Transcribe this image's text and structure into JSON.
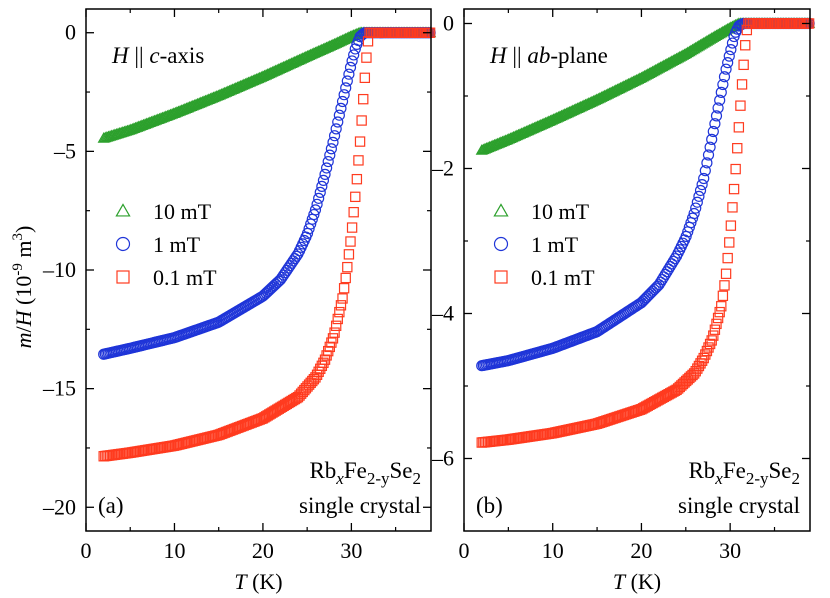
{
  "colors": {
    "green": "#2ca02c",
    "blue": "#1f35d8",
    "red": "#ff3b1f",
    "axis": "#000000",
    "background": "#ffffff"
  },
  "chart_data": [
    {
      "panel": "(a)",
      "type": "scatter",
      "annotation": "H || c-axis",
      "sample": [
        "Rb",
        "x",
        "Fe",
        "2-y",
        "Se",
        "2"
      ],
      "sample_line2": "single crystal",
      "xlabel": "T (K)",
      "ylabel": "m/H (10^-9 m^3)",
      "xlim": [
        0,
        39
      ],
      "ylim": [
        -21,
        1
      ],
      "xticks": [
        0,
        10,
        20,
        30
      ],
      "yticks": [
        0,
        -5,
        -10,
        -15,
        -20
      ],
      "ytick_labels": [
        "0",
        "–5",
        "–10",
        "–15",
        "–20"
      ],
      "legend_position": "center-left",
      "series": [
        {
          "name": "10 mT",
          "marker": "triangle",
          "color": "#2ca02c",
          "x": [
            2,
            5,
            10,
            15,
            20,
            25,
            28,
            30,
            31,
            32,
            34,
            36,
            39
          ],
          "y": [
            -4.45,
            -4.1,
            -3.4,
            -2.65,
            -1.85,
            -1.0,
            -0.5,
            -0.15,
            0.0,
            0.0,
            0.0,
            0.0,
            0.0
          ]
        },
        {
          "name": "1 mT",
          "marker": "circle",
          "color": "#1f35d8",
          "x": [
            2,
            5,
            10,
            15,
            20,
            22,
            24,
            25,
            26,
            27,
            28,
            28.5,
            29,
            29.5,
            30,
            30.5,
            31,
            31.5,
            32,
            34,
            36,
            39
          ],
          "y": [
            -13.55,
            -13.3,
            -12.85,
            -12.2,
            -11.1,
            -10.4,
            -9.3,
            -8.5,
            -7.4,
            -6.0,
            -4.5,
            -3.7,
            -2.9,
            -2.1,
            -1.3,
            -0.6,
            -0.15,
            0.0,
            0.0,
            0.0,
            0.0,
            0.0
          ]
        },
        {
          "name": "0.1 mT",
          "marker": "square",
          "color": "#ff3b1f",
          "x": [
            2,
            5,
            10,
            15,
            20,
            24,
            26,
            27,
            28,
            29,
            29.5,
            30,
            30.5,
            31,
            31.3,
            31.6,
            31.8,
            32,
            34,
            36,
            39
          ],
          "y": [
            -17.85,
            -17.7,
            -17.4,
            -16.95,
            -16.25,
            -15.35,
            -14.5,
            -13.8,
            -12.8,
            -11.2,
            -10.0,
            -8.5,
            -6.7,
            -4.5,
            -3.0,
            -1.5,
            -0.6,
            0.0,
            0.0,
            0.0,
            0.0
          ]
        }
      ]
    },
    {
      "panel": "(b)",
      "type": "scatter",
      "annotation": "H || ab-plane",
      "sample": [
        "Rb",
        "x",
        "Fe",
        "2-y",
        "Se",
        "2"
      ],
      "sample_line2": "single crystal",
      "xlabel": "T (K)",
      "ylabel": "",
      "xlim": [
        0,
        39
      ],
      "ylim": [
        -7,
        0.2
      ],
      "xticks": [
        0,
        10,
        20,
        30
      ],
      "yticks": [
        0,
        -2,
        -4,
        -6
      ],
      "ytick_labels": [
        "0",
        "–2",
        "–4",
        "–6"
      ],
      "legend_position": "center-left",
      "series": [
        {
          "name": "10 mT",
          "marker": "triangle",
          "color": "#2ca02c",
          "x": [
            2,
            5,
            10,
            15,
            20,
            25,
            28,
            30,
            31,
            32,
            34,
            36,
            39
          ],
          "y": [
            -1.75,
            -1.6,
            -1.33,
            -1.05,
            -0.75,
            -0.42,
            -0.2,
            -0.06,
            0.0,
            0.0,
            0.0,
            0.0,
            0.0
          ]
        },
        {
          "name": "1 mT",
          "marker": "circle",
          "color": "#1f35d8",
          "x": [
            2,
            5,
            10,
            15,
            20,
            22,
            24,
            25,
            26,
            27,
            28,
            28.5,
            29,
            29.5,
            30,
            30.5,
            31,
            31.5,
            32,
            34,
            36,
            39
          ],
          "y": [
            -4.72,
            -4.65,
            -4.48,
            -4.25,
            -3.85,
            -3.6,
            -3.2,
            -2.95,
            -2.6,
            -2.15,
            -1.55,
            -1.25,
            -0.95,
            -0.65,
            -0.4,
            -0.15,
            -0.03,
            0.0,
            0.0,
            0.0,
            0.0,
            0.0
          ]
        },
        {
          "name": "0.1 mT",
          "marker": "square",
          "color": "#ff3b1f",
          "x": [
            2,
            5,
            10,
            15,
            20,
            24,
            26,
            27,
            28,
            29,
            29.5,
            30,
            30.5,
            31,
            31.3,
            31.6,
            31.8,
            32,
            34,
            36,
            39
          ],
          "y": [
            -5.78,
            -5.74,
            -5.65,
            -5.52,
            -5.32,
            -5.05,
            -4.82,
            -4.62,
            -4.35,
            -3.9,
            -3.5,
            -2.9,
            -2.2,
            -1.4,
            -0.9,
            -0.45,
            -0.15,
            0.0,
            0.0,
            0.0,
            0.0
          ]
        }
      ]
    }
  ]
}
